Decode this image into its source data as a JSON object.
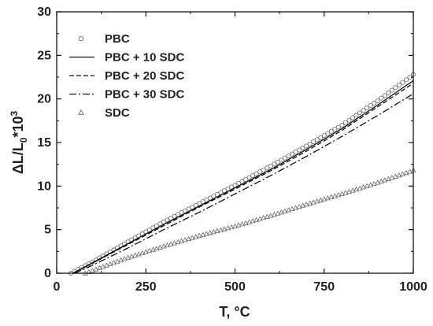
{
  "chart_data": {
    "type": "line",
    "xlabel": "T, °C",
    "ylabel": {
      "prefix": "ΔL/L",
      "sub": "0",
      "mid": "*10",
      "sup": "3"
    },
    "xlim": [
      0,
      1000
    ],
    "ylim": [
      0,
      30
    ],
    "x_ticks": [
      0,
      250,
      500,
      750,
      1000
    ],
    "y_ticks": [
      0,
      5,
      10,
      15,
      20,
      25,
      30
    ],
    "x_tick_labels": [
      "0",
      "250",
      "500",
      "750",
      "1000"
    ],
    "y_tick_labels": [
      "0",
      "5",
      "10",
      "15",
      "20",
      "25",
      "30"
    ],
    "grid": false,
    "legend_position": "top-left",
    "series": [
      {
        "name": "PBC",
        "style": "marker-circle",
        "x": [
          40,
          100,
          200,
          300,
          400,
          500,
          600,
          700,
          800,
          900,
          1000
        ],
        "y": [
          0,
          1.3,
          3.6,
          5.9,
          8.0,
          10.1,
          12.3,
          14.6,
          17.0,
          19.8,
          22.8
        ]
      },
      {
        "name": "PBC + 10 SDC",
        "style": "solid",
        "x": [
          45,
          100,
          200,
          300,
          400,
          500,
          600,
          700,
          800,
          900,
          1000
        ],
        "y": [
          0,
          1.2,
          3.4,
          5.6,
          7.7,
          9.8,
          11.9,
          14.2,
          16.6,
          19.3,
          22.1
        ]
      },
      {
        "name": "PBC + 20 SDC",
        "style": "dashed",
        "x": [
          45,
          100,
          200,
          300,
          400,
          500,
          600,
          700,
          800,
          900,
          1000
        ],
        "y": [
          0,
          1.15,
          3.3,
          5.45,
          7.6,
          9.65,
          11.75,
          14.0,
          16.4,
          19.1,
          21.8
        ]
      },
      {
        "name": "PBC + 30 SDC",
        "style": "dashdot",
        "x": [
          50,
          100,
          200,
          300,
          400,
          500,
          600,
          700,
          800,
          900,
          1000
        ],
        "y": [
          0,
          0.9,
          2.9,
          5.0,
          7.0,
          9.1,
          11.2,
          13.4,
          15.7,
          18.1,
          20.6
        ]
      },
      {
        "name": "SDC",
        "style": "marker-triangle",
        "x": [
          80,
          100,
          200,
          300,
          400,
          500,
          600,
          700,
          800,
          900,
          1000
        ],
        "y": [
          0,
          0.3,
          1.8,
          3.1,
          4.3,
          5.4,
          6.6,
          7.9,
          9.1,
          10.4,
          11.8
        ]
      }
    ]
  }
}
